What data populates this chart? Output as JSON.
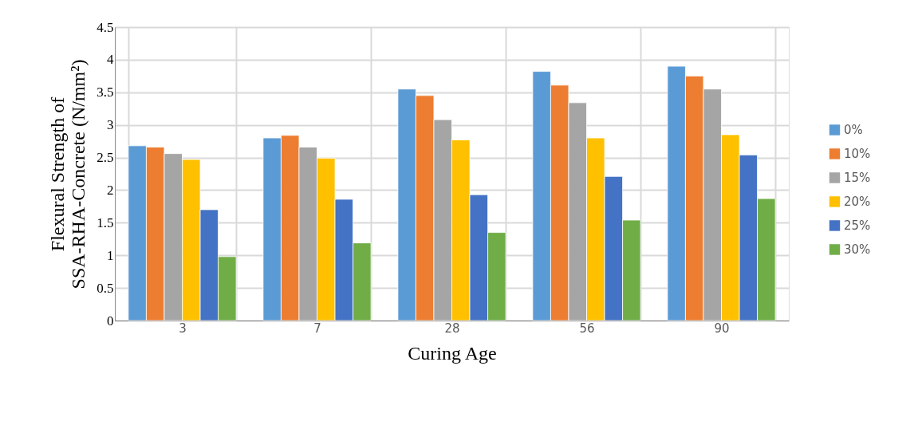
{
  "chart_data": {
    "type": "bar",
    "xlabel": "Curing Age",
    "ylabel": "Flexural Strength of SSA-RHA-Concrete (N/mm²)",
    "categories": [
      "3",
      "7",
      "28",
      "56",
      "90"
    ],
    "series": [
      {
        "name": "0%",
        "color": "#5b9bd5",
        "values": [
          2.68,
          2.8,
          3.55,
          3.82,
          3.9
        ]
      },
      {
        "name": "10%",
        "color": "#ed7d31",
        "values": [
          2.66,
          2.84,
          3.45,
          3.61,
          3.75
        ]
      },
      {
        "name": "15%",
        "color": "#a5a5a5",
        "values": [
          2.56,
          2.66,
          3.08,
          3.34,
          3.55
        ]
      },
      {
        "name": "20%",
        "color": "#ffc000",
        "values": [
          2.47,
          2.49,
          2.77,
          2.8,
          2.85
        ]
      },
      {
        "name": "25%",
        "color": "#4472c4",
        "values": [
          1.7,
          1.86,
          1.93,
          2.21,
          2.54
        ]
      },
      {
        "name": "30%",
        "color": "#70ad47",
        "values": [
          0.98,
          1.19,
          1.35,
          1.54,
          1.87
        ]
      }
    ],
    "ylim": [
      0,
      4.5
    ],
    "yticks": [
      0,
      0.5,
      1,
      1.5,
      2,
      2.5,
      3,
      3.5,
      4,
      4.5
    ],
    "grid": true,
    "legend": "right"
  }
}
